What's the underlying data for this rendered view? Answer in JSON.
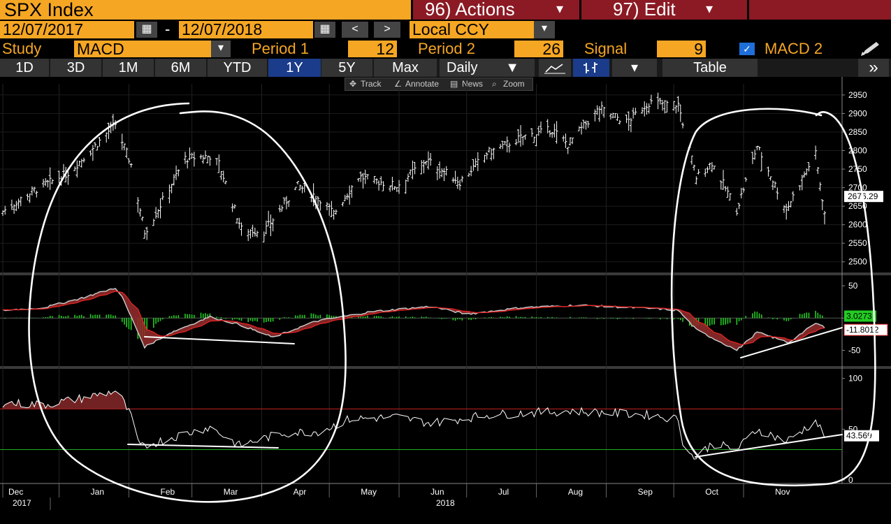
{
  "header": {
    "ticker": "SPX Index",
    "actions_label": "96) Actions",
    "edit_label": "97) Edit",
    "actions_caret": "▾",
    "edit_caret": "▾"
  },
  "range": {
    "start": "12/07/2017",
    "sep": "-",
    "end": "12/07/2018",
    "prev": "<",
    "next": ">",
    "currency": "Local CCY"
  },
  "study": {
    "study_label": "Study",
    "study_value": "MACD",
    "p1_label": "Period 1",
    "p1_value": "12",
    "p2_label": "Period 2",
    "p2_value": "26",
    "sig_label": "Signal",
    "sig_value": "9",
    "macd2_label": "MACD 2",
    "macd2_checked": true
  },
  "toolbar": {
    "periods": [
      "1D",
      "3D",
      "1M",
      "6M",
      "YTD",
      "1Y",
      "5Y",
      "Max"
    ],
    "active_period": "1Y",
    "frequency": "Daily",
    "table_label": "Table",
    "more": "»"
  },
  "tools": [
    "Track",
    "Annotate",
    "News",
    "Zoom"
  ],
  "colors": {
    "accent": "#f5a623",
    "bar_red": "#8b1a24",
    "active_blue": "#1b3c8a",
    "macd_fill": "#8e2a2a",
    "hist": "#22cc22",
    "ob_line": "#cc2222",
    "os_line": "#22aa22"
  },
  "chart_data": [
    {
      "type": "bar",
      "name": "SPX Index OHLC",
      "ylim": [
        2475,
        2980
      ],
      "yticks": [
        "2950",
        "2900",
        "2850",
        "2800",
        "2750",
        "2700",
        "2650",
        "2600",
        "2550",
        "2500"
      ],
      "last_value_tag": "2676.29",
      "x_months": [
        "Dec",
        "Jan",
        "Feb",
        "Mar",
        "Apr",
        "May",
        "Jun",
        "Jul",
        "Aug",
        "Sep",
        "Oct",
        "Nov"
      ],
      "x_years": [
        "2017",
        "2018"
      ],
      "anchors": [
        [
          "2017-12-07",
          2636
        ],
        [
          "2017-12-20",
          2690
        ],
        [
          "2018-01-05",
          2740
        ],
        [
          "2018-01-15",
          2800
        ],
        [
          "2018-01-26",
          2872
        ],
        [
          "2018-02-02",
          2762
        ],
        [
          "2018-02-08",
          2581
        ],
        [
          "2018-02-12",
          2620
        ],
        [
          "2018-02-26",
          2779
        ],
        [
          "2018-03-09",
          2786
        ],
        [
          "2018-03-13",
          2765
        ],
        [
          "2018-03-23",
          2588
        ],
        [
          "2018-04-02",
          2582
        ],
        [
          "2018-04-17",
          2706
        ],
        [
          "2018-04-27",
          2670
        ],
        [
          "2018-05-03",
          2630
        ],
        [
          "2018-05-14",
          2730
        ],
        [
          "2018-05-31",
          2705
        ],
        [
          "2018-06-13",
          2775
        ],
        [
          "2018-06-28",
          2716
        ],
        [
          "2018-07-10",
          2793
        ],
        [
          "2018-07-26",
          2837
        ],
        [
          "2018-08-08",
          2857
        ],
        [
          "2018-08-15",
          2818
        ],
        [
          "2018-08-29",
          2914
        ],
        [
          "2018-09-10",
          2877
        ],
        [
          "2018-09-20",
          2930
        ],
        [
          "2018-10-03",
          2925
        ],
        [
          "2018-10-11",
          2728
        ],
        [
          "2018-10-18",
          2768
        ],
        [
          "2018-10-29",
          2641
        ],
        [
          "2018-11-07",
          2813
        ],
        [
          "2018-11-20",
          2641
        ],
        [
          "2018-11-30",
          2760
        ],
        [
          "2018-12-03",
          2790
        ],
        [
          "2018-12-07",
          2633
        ]
      ]
    },
    {
      "type": "line",
      "name": "MACD",
      "ylim": [
        -68,
        62
      ],
      "yticks": [
        "50",
        "0",
        "-50"
      ],
      "macd_tag": "3.0273",
      "signal_tag": "-11.8012",
      "anchors": [
        [
          "2017-12-07",
          12
        ],
        [
          "2017-12-25",
          16
        ],
        [
          "2018-01-10",
          30
        ],
        [
          "2018-01-27",
          48
        ],
        [
          "2018-02-08",
          -45
        ],
        [
          "2018-02-20",
          -22
        ],
        [
          "2018-03-09",
          2
        ],
        [
          "2018-03-22",
          -10
        ],
        [
          "2018-04-06",
          -30
        ],
        [
          "2018-04-25",
          -5
        ],
        [
          "2018-05-20",
          10
        ],
        [
          "2018-06-15",
          18
        ],
        [
          "2018-07-01",
          6
        ],
        [
          "2018-07-25",
          16
        ],
        [
          "2018-08-20",
          20
        ],
        [
          "2018-09-25",
          14
        ],
        [
          "2018-10-03",
          12
        ],
        [
          "2018-10-11",
          -18
        ],
        [
          "2018-10-29",
          -50
        ],
        [
          "2018-11-07",
          -22
        ],
        [
          "2018-11-21",
          -38
        ],
        [
          "2018-12-03",
          -8
        ],
        [
          "2018-12-07",
          -14
        ]
      ]
    },
    {
      "type": "line",
      "name": "MACD 2",
      "ylim": [
        -2,
        108
      ],
      "yticks": [
        "100",
        "50",
        "0"
      ],
      "value_tag": "43.569",
      "anchors": [
        [
          "2017-12-07",
          76
        ],
        [
          "2017-12-25",
          74
        ],
        [
          "2018-01-10",
          80
        ],
        [
          "2018-01-27",
          88
        ],
        [
          "2018-02-02",
          62
        ],
        [
          "2018-02-06",
          32
        ],
        [
          "2018-02-20",
          42
        ],
        [
          "2018-03-09",
          52
        ],
        [
          "2018-03-22",
          34
        ],
        [
          "2018-04-10",
          46
        ],
        [
          "2018-04-27",
          48
        ],
        [
          "2018-05-10",
          60
        ],
        [
          "2018-05-31",
          62
        ],
        [
          "2018-06-15",
          56
        ],
        [
          "2018-07-10",
          64
        ],
        [
          "2018-08-15",
          68
        ],
        [
          "2018-09-20",
          64
        ],
        [
          "2018-10-03",
          60
        ],
        [
          "2018-10-06",
          28
        ],
        [
          "2018-10-11",
          22
        ],
        [
          "2018-10-18",
          36
        ],
        [
          "2018-10-29",
          30
        ],
        [
          "2018-11-07",
          50
        ],
        [
          "2018-11-20",
          38
        ],
        [
          "2018-12-03",
          58
        ],
        [
          "2018-12-07",
          44
        ]
      ]
    }
  ]
}
